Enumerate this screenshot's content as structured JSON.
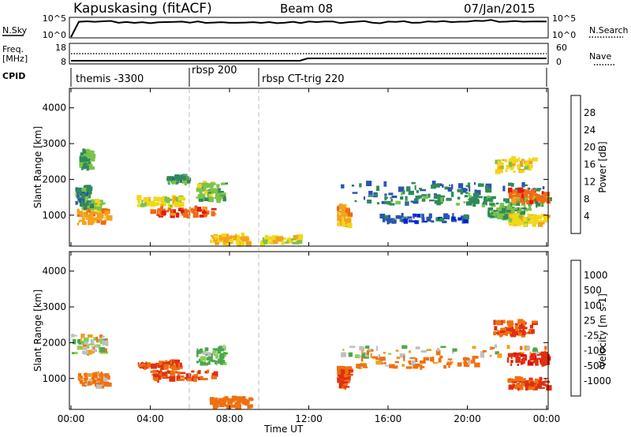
{
  "header": {
    "site": "Kapuskasing (fitACF)",
    "beam": "Beam 08",
    "date": "07/Jan/2015"
  },
  "panels": {
    "nsky_label": "N.Sky",
    "nsky_ticks": [
      "10^5",
      "10^0"
    ],
    "nsearch_label": "N.Search",
    "freq_label": "Freq.",
    "freq_unit": "[MHz]",
    "freq_ticks": [
      "18",
      "8"
    ],
    "nave_label": "Nave",
    "nave_ticks": [
      "60",
      "0"
    ],
    "cpid_label": "CPID",
    "cpid_segments": [
      "themis -3300",
      "rbsp 200",
      "rbsp CT-trig 220"
    ]
  },
  "axes": {
    "ylabel": "Slant Range [km]",
    "xlabel": "Time UT",
    "xticks": [
      "00:00",
      "04:00",
      "08:00",
      "12:00",
      "16:00",
      "20:00",
      "00:00"
    ],
    "yticks": [
      "1000",
      "2000",
      "3000",
      "4000"
    ]
  },
  "colorbars": {
    "power": {
      "label": "Power [dB]",
      "ticks": [
        "4",
        "8",
        "12",
        "16",
        "20",
        "24",
        "28"
      ],
      "colors": [
        "#0022dd",
        "#2a55b0",
        "#2f8a5a",
        "#7cc24a",
        "#f2d818",
        "#f5a020",
        "#f06a14",
        "#e01a10"
      ]
    },
    "velocity": {
      "label": "Velocity [m s-1]",
      "ticks": [
        "1000",
        "500",
        "100",
        "25",
        "-25",
        "-100",
        "-500",
        "-1000"
      ],
      "colors": [
        "#1a3fb0",
        "#2f7a5a",
        "#4aa84a",
        "#8ad050",
        "#c0c0c0",
        "#f0a020",
        "#f07010",
        "#e03010",
        "#e00c0c"
      ]
    }
  },
  "chart_data": [
    {
      "type": "heatmap",
      "name": "power",
      "x_range_hours": [
        0,
        24
      ],
      "y_range_km": [
        180,
        4500
      ],
      "units": "dB",
      "blobs": [
        {
          "t": [
            0.3,
            1.8
          ],
          "r": [
            750,
            1150
          ],
          "v": 22
        },
        {
          "t": [
            0.5,
            1.5
          ],
          "r": [
            1150,
            1400
          ],
          "v": 14
        },
        {
          "t": [
            0.2,
            0.8
          ],
          "r": [
            1300,
            1800
          ],
          "v": 10
        },
        {
          "t": [
            0.4,
            1.0
          ],
          "r": [
            2300,
            2800
          ],
          "v": 12
        },
        {
          "t": [
            3.3,
            5.5
          ],
          "r": [
            1250,
            1500
          ],
          "v": 18
        },
        {
          "t": [
            4.0,
            7.2
          ],
          "r": [
            950,
            1200
          ],
          "v": 26
        },
        {
          "t": [
            6.3,
            7.7
          ],
          "r": [
            1400,
            1900
          ],
          "v": 14
        },
        {
          "t": [
            4.8,
            5.8
          ],
          "r": [
            1900,
            2100
          ],
          "v": 10
        },
        {
          "t": [
            7.0,
            9.0
          ],
          "r": [
            200,
            450
          ],
          "v": 20
        },
        {
          "t": [
            9.5,
            11.5
          ],
          "r": [
            200,
            400
          ],
          "v": 18
        },
        {
          "t": [
            13.4,
            14.0
          ],
          "r": [
            700,
            1300
          ],
          "v": 22
        },
        {
          "t": [
            13.5,
            24.0
          ],
          "r": [
            1600,
            1900
          ],
          "v": 8
        },
        {
          "t": [
            14.3,
            20.5
          ],
          "r": [
            1300,
            1600
          ],
          "v": 10
        },
        {
          "t": [
            20.0,
            24.0
          ],
          "r": [
            1250,
            1500
          ],
          "v": 12
        },
        {
          "t": [
            22.0,
            24.0
          ],
          "r": [
            1350,
            1700
          ],
          "v": 26
        },
        {
          "t": [
            21.0,
            23.0
          ],
          "r": [
            900,
            1200
          ],
          "v": 12
        },
        {
          "t": [
            21.3,
            23.3
          ],
          "r": [
            2200,
            2600
          ],
          "v": 18
        },
        {
          "t": [
            22.0,
            24.0
          ],
          "r": [
            700,
            1000
          ],
          "v": 18
        },
        {
          "t": [
            15.5,
            20.0
          ],
          "r": [
            800,
            1000
          ],
          "v": 6
        }
      ]
    },
    {
      "type": "heatmap",
      "name": "velocity",
      "x_range_hours": [
        0,
        24
      ],
      "y_range_km": [
        180,
        4500
      ],
      "units": "m s-1",
      "blobs": [
        {
          "t": [
            0.3,
            1.8
          ],
          "r": [
            750,
            1150
          ],
          "v": -100
        },
        {
          "t": [
            0.0,
            1.8
          ],
          "r": [
            1700,
            2200
          ],
          "v": 0
        },
        {
          "t": [
            3.3,
            5.5
          ],
          "r": [
            1250,
            1500
          ],
          "v": -300
        },
        {
          "t": [
            4.0,
            7.2
          ],
          "r": [
            950,
            1200
          ],
          "v": -300
        },
        {
          "t": [
            6.3,
            7.7
          ],
          "r": [
            1400,
            1900
          ],
          "v": 100
        },
        {
          "t": [
            7.0,
            9.0
          ],
          "r": [
            200,
            450
          ],
          "v": -200
        },
        {
          "t": [
            13.4,
            14.0
          ],
          "r": [
            700,
            1300
          ],
          "v": -300
        },
        {
          "t": [
            13.5,
            24.0
          ],
          "r": [
            1600,
            1900
          ],
          "v": 0
        },
        {
          "t": [
            14.3,
            20.5
          ],
          "r": [
            1300,
            1600
          ],
          "v": -100
        },
        {
          "t": [
            22.0,
            24.0
          ],
          "r": [
            1350,
            1700
          ],
          "v": -700
        },
        {
          "t": [
            21.3,
            23.3
          ],
          "r": [
            2200,
            2600
          ],
          "v": -300
        },
        {
          "t": [
            22.0,
            24.0
          ],
          "r": [
            700,
            1000
          ],
          "v": -300
        }
      ]
    }
  ]
}
